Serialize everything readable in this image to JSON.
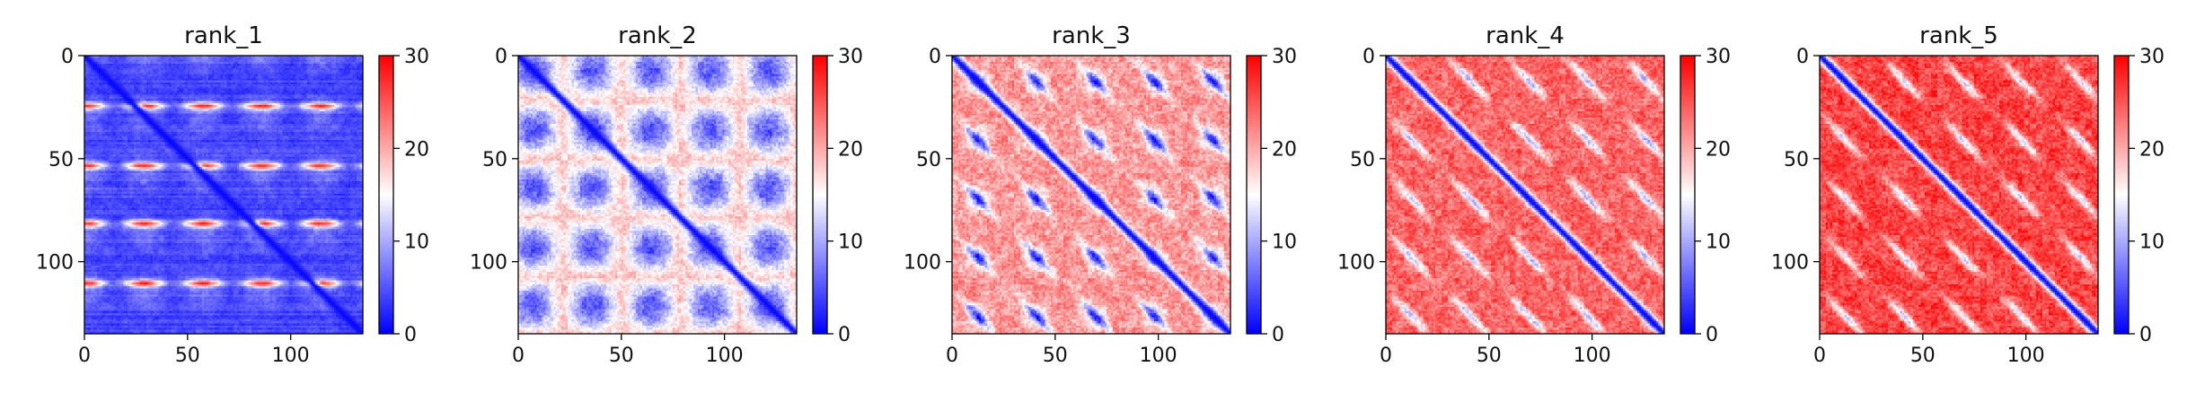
{
  "chart_data": [
    {
      "type": "heatmap",
      "title": "rank_1",
      "xlabel": "",
      "ylabel": "",
      "x_ticks": [
        0,
        50,
        100
      ],
      "y_ticks": [
        0,
        50,
        100
      ],
      "matrix_size": 135,
      "colorbar": {
        "min": 0,
        "max": 30,
        "ticks": [
          0,
          10,
          20,
          30
        ],
        "colormap": "bwr"
      },
      "pattern": {
        "period": 28.5,
        "background": 3,
        "diagonal": 0.5,
        "repeat_rows": [
          24,
          53,
          81,
          110
        ],
        "repeat_value": 24
      }
    },
    {
      "type": "heatmap",
      "title": "rank_2",
      "xlabel": "",
      "ylabel": "",
      "x_ticks": [
        0,
        50,
        100
      ],
      "y_ticks": [
        0,
        50,
        100
      ],
      "matrix_size": 135,
      "colorbar": {
        "min": 0,
        "max": 30,
        "ticks": [
          0,
          10,
          20,
          30
        ],
        "colormap": "bwr"
      },
      "pattern": {
        "period": 28.5,
        "background": 18,
        "diagonal": 0.5,
        "block_value": 5
      }
    },
    {
      "type": "heatmap",
      "title": "rank_3",
      "xlabel": "",
      "ylabel": "",
      "x_ticks": [
        0,
        50,
        100
      ],
      "y_ticks": [
        0,
        50,
        100
      ],
      "matrix_size": 135,
      "colorbar": {
        "min": 0,
        "max": 30,
        "ticks": [
          0,
          10,
          20,
          30
        ],
        "colormap": "bwr"
      },
      "pattern": {
        "period": 28.5,
        "background": 21,
        "diagonal": 0.5,
        "spot_value": 10
      }
    },
    {
      "type": "heatmap",
      "title": "rank_4",
      "xlabel": "",
      "ylabel": "",
      "x_ticks": [
        0,
        50,
        100
      ],
      "y_ticks": [
        0,
        50,
        100
      ],
      "matrix_size": 135,
      "colorbar": {
        "min": 0,
        "max": 30,
        "ticks": [
          0,
          10,
          20,
          30
        ],
        "colormap": "bwr"
      },
      "pattern": {
        "period": 28.5,
        "background": 24,
        "diagonal": 0.5,
        "spot_value": 11,
        "band_offsets": [
          -28,
          28,
          -56,
          56
        ]
      }
    },
    {
      "type": "heatmap",
      "title": "rank_5",
      "xlabel": "",
      "ylabel": "",
      "x_ticks": [
        0,
        50,
        100
      ],
      "y_ticks": [
        0,
        50,
        100
      ],
      "matrix_size": 135,
      "colorbar": {
        "min": 0,
        "max": 30,
        "ticks": [
          0,
          10,
          20,
          30
        ],
        "colormap": "bwr"
      },
      "pattern": {
        "period": 28.5,
        "background": 26,
        "diagonal": 0.5,
        "spot_value": 13,
        "band_offsets": [
          -29,
          29,
          -58,
          58,
          -87,
          87
        ]
      }
    }
  ]
}
